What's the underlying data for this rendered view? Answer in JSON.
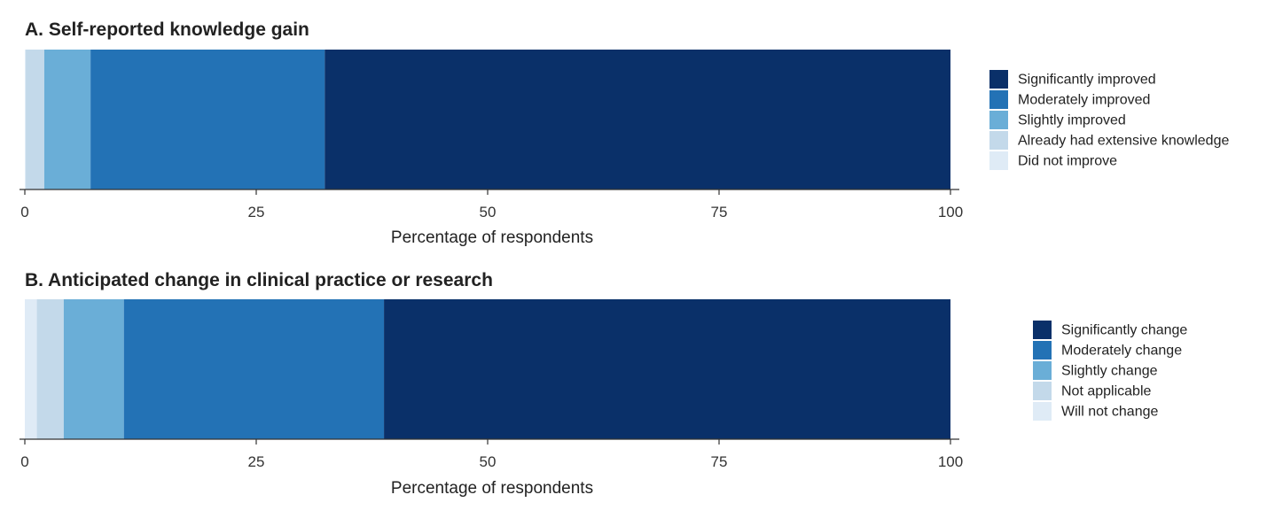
{
  "colors": {
    "darkest": "#0a3069",
    "dark": "#2372b5",
    "mid": "#6aaed7",
    "light": "#c3d9ea",
    "lightest": "#dfebf6",
    "axis": "#333333"
  },
  "chart_data": [
    {
      "type": "bar",
      "orientation": "horizontal-stacked",
      "title": "A. Self-reported knowledge gain",
      "xlabel": "Percentage of respondents",
      "xlim": [
        0,
        100
      ],
      "xticks": [
        "0",
        "25",
        "50",
        "75",
        "100"
      ],
      "segments": [
        {
          "name": "Did not improve",
          "value": 0.1,
          "color": "#dfebf6"
        },
        {
          "name": "Already had extensive knowledge",
          "value": 2.0,
          "color": "#c3d9ea"
        },
        {
          "name": "Slightly improved",
          "value": 5.0,
          "color": "#6aaed7"
        },
        {
          "name": "Moderately improved",
          "value": 25.3,
          "color": "#2372b5"
        },
        {
          "name": "Significantly improved",
          "value": 67.6,
          "color": "#0a3069"
        }
      ],
      "legend": [
        "Significantly improved",
        "Moderately improved",
        "Slightly improved",
        "Already had extensive knowledge",
        "Did not improve"
      ],
      "legend_colors": [
        "#0a3069",
        "#2372b5",
        "#6aaed7",
        "#c3d9ea",
        "#dfebf6"
      ],
      "legend_position": "right"
    },
    {
      "type": "bar",
      "orientation": "horizontal-stacked",
      "title": "B. Anticipated change in clinical practice or research",
      "xlabel": "Percentage of respondents",
      "xlim": [
        0,
        100
      ],
      "xticks": [
        "0",
        "25",
        "50",
        "75",
        "100"
      ],
      "segments": [
        {
          "name": "Will not change",
          "value": 1.3,
          "color": "#dfebf6"
        },
        {
          "name": "Not applicable",
          "value": 2.9,
          "color": "#c3d9ea"
        },
        {
          "name": "Slightly change",
          "value": 6.5,
          "color": "#6aaed7"
        },
        {
          "name": "Moderately change",
          "value": 28.1,
          "color": "#2372b5"
        },
        {
          "name": "Significantly change",
          "value": 61.2,
          "color": "#0a3069"
        }
      ],
      "legend": [
        "Significantly change",
        "Moderately change",
        "Slightly change",
        "Not applicable",
        "Will not change"
      ],
      "legend_colors": [
        "#0a3069",
        "#2372b5",
        "#6aaed7",
        "#c3d9ea",
        "#dfebf6"
      ],
      "legend_position": "right"
    }
  ]
}
